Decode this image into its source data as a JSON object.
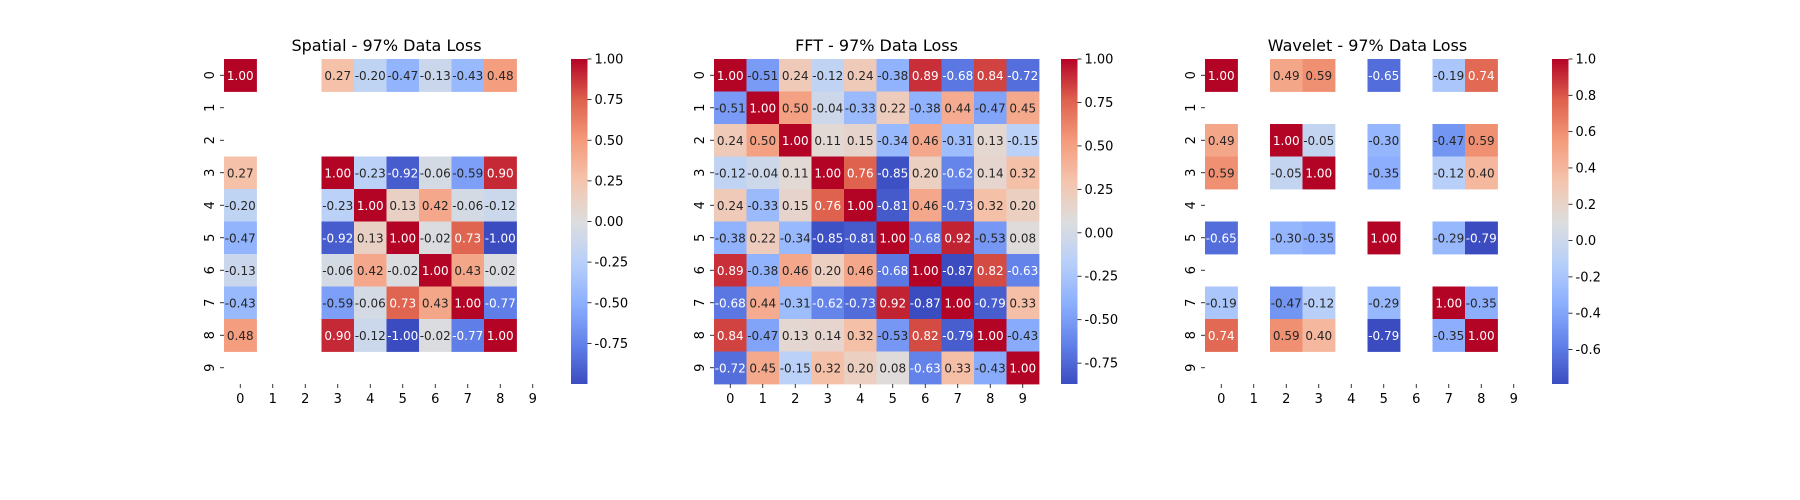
{
  "chart_data": [
    {
      "type": "heatmap",
      "title": "Spatial - 97% Data Loss",
      "x_ticks": [
        "0",
        "1",
        "2",
        "3",
        "4",
        "5",
        "6",
        "7",
        "8",
        "9"
      ],
      "y_ticks": [
        "0",
        "1",
        "2",
        "3",
        "4",
        "5",
        "6",
        "7",
        "8",
        "9"
      ],
      "colormap": "coolwarm",
      "vmin": -1.0,
      "vmax": 1.0,
      "colorbar_ticks": [
        "-0.75",
        "-0.50",
        "-0.25",
        "0.00",
        "0.25",
        "0.50",
        "0.75",
        "1.00"
      ],
      "colorbar_tick_values": [
        -0.75,
        -0.5,
        -0.25,
        0.0,
        0.25,
        0.5,
        0.75,
        1.0
      ],
      "matrix": [
        [
          1.0,
          null,
          null,
          0.27,
          -0.2,
          -0.47,
          -0.13,
          -0.43,
          0.48,
          null
        ],
        [
          null,
          null,
          null,
          null,
          null,
          null,
          null,
          null,
          null,
          null
        ],
        [
          null,
          null,
          null,
          null,
          null,
          null,
          null,
          null,
          null,
          null
        ],
        [
          0.27,
          null,
          null,
          1.0,
          -0.23,
          -0.92,
          -0.06,
          -0.59,
          0.9,
          null
        ],
        [
          -0.2,
          null,
          null,
          -0.23,
          1.0,
          0.13,
          0.42,
          -0.06,
          -0.12,
          null
        ],
        [
          -0.47,
          null,
          null,
          -0.92,
          0.13,
          1.0,
          -0.02,
          0.73,
          -1.0,
          null
        ],
        [
          -0.13,
          null,
          null,
          -0.06,
          0.42,
          -0.02,
          1.0,
          0.43,
          -0.02,
          null
        ],
        [
          -0.43,
          null,
          null,
          -0.59,
          -0.06,
          0.73,
          0.43,
          1.0,
          -0.77,
          null
        ],
        [
          0.48,
          null,
          null,
          0.9,
          -0.12,
          -1.0,
          -0.02,
          -0.77,
          1.0,
          null
        ],
        [
          null,
          null,
          null,
          null,
          null,
          null,
          null,
          null,
          null,
          null
        ]
      ]
    },
    {
      "type": "heatmap",
      "title": "FFT - 97% Data Loss",
      "x_ticks": [
        "0",
        "1",
        "2",
        "3",
        "4",
        "5",
        "6",
        "7",
        "8",
        "9"
      ],
      "y_ticks": [
        "0",
        "1",
        "2",
        "3",
        "4",
        "5",
        "6",
        "7",
        "8",
        "9"
      ],
      "colormap": "coolwarm",
      "vmin": -0.87,
      "vmax": 1.0,
      "colorbar_ticks": [
        "-0.75",
        "-0.50",
        "-0.25",
        "0.00",
        "0.25",
        "0.50",
        "0.75",
        "1.00"
      ],
      "colorbar_tick_values": [
        -0.75,
        -0.5,
        -0.25,
        0.0,
        0.25,
        0.5,
        0.75,
        1.0
      ],
      "matrix": [
        [
          1.0,
          -0.51,
          0.24,
          -0.12,
          0.24,
          -0.38,
          0.89,
          -0.68,
          0.84,
          -0.72
        ],
        [
          -0.51,
          1.0,
          0.5,
          -0.04,
          -0.33,
          0.22,
          -0.38,
          0.44,
          -0.47,
          0.45
        ],
        [
          0.24,
          0.5,
          1.0,
          0.11,
          0.15,
          -0.34,
          0.46,
          -0.31,
          0.13,
          -0.15
        ],
        [
          -0.12,
          -0.04,
          0.11,
          1.0,
          0.76,
          -0.85,
          0.2,
          -0.62,
          0.14,
          0.32
        ],
        [
          0.24,
          -0.33,
          0.15,
          0.76,
          1.0,
          -0.81,
          0.46,
          -0.73,
          0.32,
          0.2
        ],
        [
          -0.38,
          0.22,
          -0.34,
          -0.85,
          -0.81,
          1.0,
          -0.68,
          0.92,
          -0.53,
          0.08
        ],
        [
          0.89,
          -0.38,
          0.46,
          0.2,
          0.46,
          -0.68,
          1.0,
          -0.87,
          0.82,
          -0.63
        ],
        [
          -0.68,
          0.44,
          -0.31,
          -0.62,
          -0.73,
          0.92,
          -0.87,
          1.0,
          -0.79,
          0.33
        ],
        [
          0.84,
          -0.47,
          0.13,
          0.14,
          0.32,
          -0.53,
          0.82,
          -0.79,
          1.0,
          -0.43
        ],
        [
          -0.72,
          0.45,
          -0.15,
          0.32,
          0.2,
          0.08,
          -0.63,
          0.33,
          -0.43,
          1.0
        ]
      ]
    },
    {
      "type": "heatmap",
      "title": "Wavelet - 97% Data Loss",
      "x_ticks": [
        "0",
        "1",
        "2",
        "3",
        "4",
        "5",
        "6",
        "7",
        "8",
        "9"
      ],
      "y_ticks": [
        "0",
        "1",
        "2",
        "3",
        "4",
        "5",
        "6",
        "7",
        "8",
        "9"
      ],
      "colormap": "coolwarm",
      "vmin": -0.79,
      "vmax": 1.0,
      "colorbar_ticks": [
        "-0.6",
        "-0.4",
        "-0.2",
        "0.0",
        "0.2",
        "0.4",
        "0.6",
        "0.8",
        "1.0"
      ],
      "colorbar_tick_values": [
        -0.6,
        -0.4,
        -0.2,
        0.0,
        0.2,
        0.4,
        0.6,
        0.8,
        1.0
      ],
      "matrix": [
        [
          1.0,
          null,
          0.49,
          0.59,
          null,
          -0.65,
          null,
          -0.19,
          0.74,
          null
        ],
        [
          null,
          null,
          null,
          null,
          null,
          null,
          null,
          null,
          null,
          null
        ],
        [
          0.49,
          null,
          1.0,
          -0.05,
          null,
          -0.3,
          null,
          -0.47,
          0.59,
          null
        ],
        [
          0.59,
          null,
          -0.05,
          1.0,
          null,
          -0.35,
          null,
          -0.12,
          0.4,
          null
        ],
        [
          null,
          null,
          null,
          null,
          null,
          null,
          null,
          null,
          null,
          null
        ],
        [
          -0.65,
          null,
          -0.3,
          -0.35,
          null,
          1.0,
          null,
          -0.29,
          -0.79,
          null
        ],
        [
          null,
          null,
          null,
          null,
          null,
          null,
          null,
          null,
          null,
          null
        ],
        [
          -0.19,
          null,
          -0.47,
          -0.12,
          null,
          -0.29,
          null,
          1.0,
          -0.35,
          null
        ],
        [
          0.74,
          null,
          0.59,
          0.4,
          null,
          -0.79,
          null,
          -0.35,
          1.0,
          null
        ],
        [
          null,
          null,
          null,
          null,
          null,
          null,
          null,
          null,
          null,
          null
        ]
      ]
    }
  ]
}
